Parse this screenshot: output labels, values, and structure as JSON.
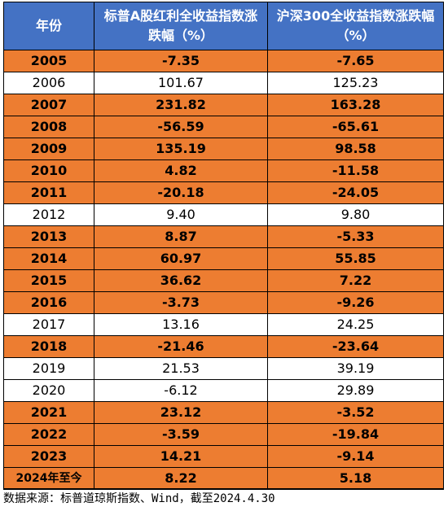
{
  "table": {
    "headers": [
      "年份",
      "标普A股红利全收益指数涨跌幅（%）",
      "沪深300全收益指数涨跌幅（%）"
    ],
    "highlight_color": "#ed7d31",
    "header_color": "#4472c4",
    "rows": [
      {
        "year": "2005",
        "sp": "-7.35",
        "hs": "-7.65",
        "highlight": true
      },
      {
        "year": "2006",
        "sp": "101.67",
        "hs": "125.23",
        "highlight": false
      },
      {
        "year": "2007",
        "sp": "231.82",
        "hs": "163.28",
        "highlight": true
      },
      {
        "year": "2008",
        "sp": "-56.59",
        "hs": "-65.61",
        "highlight": true
      },
      {
        "year": "2009",
        "sp": "135.19",
        "hs": "98.58",
        "highlight": true
      },
      {
        "year": "2010",
        "sp": "4.82",
        "hs": "-11.58",
        "highlight": true
      },
      {
        "year": "2011",
        "sp": "-20.18",
        "hs": "-24.05",
        "highlight": true
      },
      {
        "year": "2012",
        "sp": "9.40",
        "hs": "9.80",
        "highlight": false
      },
      {
        "year": "2013",
        "sp": "8.87",
        "hs": "-5.33",
        "highlight": true
      },
      {
        "year": "2014",
        "sp": "60.97",
        "hs": "55.85",
        "highlight": true
      },
      {
        "year": "2015",
        "sp": "36.62",
        "hs": "7.22",
        "highlight": true
      },
      {
        "year": "2016",
        "sp": "-3.73",
        "hs": "-9.26",
        "highlight": true
      },
      {
        "year": "2017",
        "sp": "13.16",
        "hs": "24.25",
        "highlight": false
      },
      {
        "year": "2018",
        "sp": "-21.46",
        "hs": "-23.64",
        "highlight": true
      },
      {
        "year": "2019",
        "sp": "21.53",
        "hs": "39.19",
        "highlight": false
      },
      {
        "year": "2020",
        "sp": "-6.12",
        "hs": "29.89",
        "highlight": false
      },
      {
        "year": "2021",
        "sp": "23.12",
        "hs": "-3.52",
        "highlight": true
      },
      {
        "year": "2022",
        "sp": "-3.59",
        "hs": "-19.84",
        "highlight": true
      },
      {
        "year": "2023",
        "sp": "14.21",
        "hs": "-9.14",
        "highlight": true
      },
      {
        "year": "2024年至今",
        "sp": "8.22",
        "hs": "5.18",
        "highlight": true
      }
    ]
  },
  "footnote": "数据来源：标普道琼斯指数、Wind，截至2024.4.30"
}
